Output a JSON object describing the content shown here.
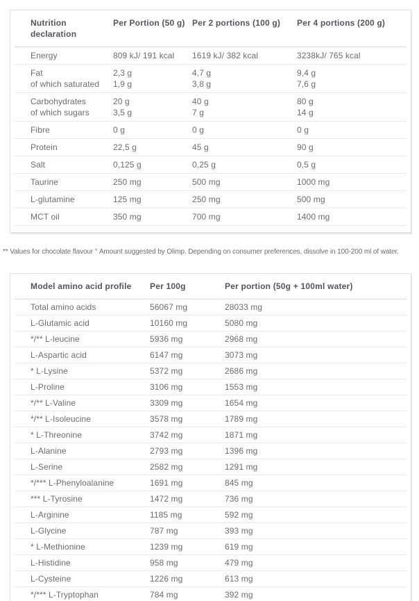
{
  "footnote": "** Values for chocolate flavour ° Amount suggested by Olimp. Depending on consumer preferences, dissolve in 100-200 ml of water.",
  "colors": {
    "header_text": "#54555a",
    "body_text": "#6b6c70",
    "divider": "#e8e8e9",
    "card_border": "#e0e0e1",
    "background": "#ffffff"
  },
  "nutrition_table": {
    "headers": [
      "Nutrition declaration",
      "Per Portion (50 g)",
      "Per 2 portions (100 g)",
      "Per 4 portions (200 g)"
    ],
    "rows": [
      [
        "Energy",
        "809 kJ/ 191 kcal",
        "1619 kJ/ 382 kcal",
        "3238kJ/ 765 kcal"
      ],
      [
        "Fat\nof which saturated",
        "2,3 g\n1,9 g",
        "4,7 g\n3,8 g",
        "9,4 g\n7,6 g"
      ],
      [
        "Carbohydrates\nof which sugars",
        "20 g\n3,5 g",
        "40 g\n7 g",
        "80 g\n14 g"
      ],
      [
        "Fibre",
        "0 g",
        "0 g",
        "0 g"
      ],
      [
        "Protein",
        "22,5 g",
        "45 g",
        "90 g"
      ],
      [
        "Salt",
        "0,125 g",
        "0,25 g",
        "0,5 g"
      ],
      [
        "Taurine",
        "250 mg",
        "500 mg",
        "1000 mg"
      ],
      [
        "L-glutamine",
        "125 mg",
        "250 mg",
        "500 mg"
      ],
      [
        "MCT oil",
        "350 mg",
        "700 mg",
        "1400 mg"
      ]
    ]
  },
  "amino_table": {
    "headers": [
      "Model amino acid profile",
      "Per 100g",
      "Per portion (50g + 100ml water)"
    ],
    "rows": [
      [
        "Total amino acids",
        "56067 mg",
        "28033 mg"
      ],
      [
        "L-Glutamic acid",
        "10160 mg",
        "5080 mg"
      ],
      [
        "*/** L-leucine",
        "5936 mg",
        "2968 mg"
      ],
      [
        "L-Aspartic acid",
        "6147 mg",
        "3073 mg"
      ],
      [
        "* L-Lysine",
        "5372 mg",
        "2686 mg"
      ],
      [
        "L-Proline",
        "3106 mg",
        "1553 mg"
      ],
      [
        "*/** L-Valine",
        "3309 mg",
        "1654 mg"
      ],
      [
        "*/** L-Isoleucine",
        "3578 mg",
        "1789 mg"
      ],
      [
        "* L-Threonine",
        "3742 mg",
        "1871 mg"
      ],
      [
        "L-Alanine",
        "2793 mg",
        "1396 mg"
      ],
      [
        "L-Serine",
        "2582 mg",
        "1291 mg"
      ],
      [
        "*/*** L-Phenyloalanine",
        "1691 mg",
        "845 mg"
      ],
      [
        "*** L-Tyrosine",
        "1472 mg",
        "736 mg"
      ],
      [
        "L-Arginine",
        "1185 mg",
        "592 mg"
      ],
      [
        "L-Glycine",
        "787 mg",
        "393 mg"
      ],
      [
        "* L-Methionine",
        "1239 mg",
        "619 mg"
      ],
      [
        "L-Histidine",
        "958 mg",
        "479 mg"
      ],
      [
        "L-Cysteine",
        "1226 mg",
        "613 mg"
      ],
      [
        "*/*** L-Tryptophan",
        "784 mg",
        "392 mg"
      ]
    ]
  }
}
